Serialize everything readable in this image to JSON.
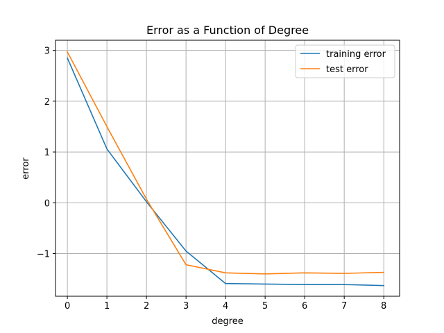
{
  "chart_data": {
    "type": "line",
    "title": "Error as a Function of Degree",
    "xlabel": "degree",
    "ylabel": "error",
    "x": [
      0,
      1,
      2,
      3,
      4,
      5,
      6,
      7,
      8
    ],
    "xlim": [
      -0.3,
      8.4
    ],
    "ylim": [
      -1.84,
      3.2
    ],
    "xticks": [
      0,
      1,
      2,
      3,
      4,
      5,
      6,
      7,
      8
    ],
    "yticks": [
      -1,
      0,
      1,
      2,
      3
    ],
    "ytick_labels": [
      "−1",
      "0",
      "1",
      "2",
      "3"
    ],
    "grid": true,
    "legend_position": "top-right",
    "series": [
      {
        "name": "training error",
        "color": "#1f77b4",
        "values": [
          2.85,
          1.06,
          0.02,
          -0.95,
          -1.59,
          -1.6,
          -1.61,
          -1.61,
          -1.63
        ]
      },
      {
        "name": "test error",
        "color": "#ff7f0e",
        "values": [
          2.97,
          1.5,
          0.07,
          -1.22,
          -1.38,
          -1.4,
          -1.38,
          -1.39,
          -1.37
        ]
      }
    ]
  }
}
